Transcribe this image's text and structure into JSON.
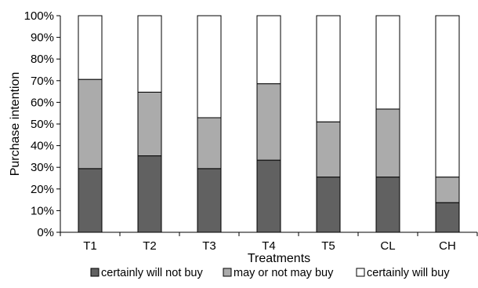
{
  "chart_data": {
    "type": "bar",
    "stacked": true,
    "percent": true,
    "title": "",
    "xlabel": "Treatments",
    "ylabel": "Purchase intention",
    "ylim": [
      0,
      100
    ],
    "yticks": [
      "0%",
      "10%",
      "20%",
      "30%",
      "40%",
      "50%",
      "60%",
      "70%",
      "80%",
      "90%",
      "100%"
    ],
    "categories": [
      "T1",
      "T2",
      "T3",
      "T4",
      "T5",
      "CL",
      "CH"
    ],
    "series": [
      {
        "name": "certainly will not buy",
        "color": "#616161",
        "values": [
          29.4,
          35.3,
          29.4,
          33.3,
          25.5,
          25.5,
          13.7
        ]
      },
      {
        "name": "may or not may buy",
        "color": "#ababab",
        "values": [
          41.2,
          29.4,
          23.5,
          35.3,
          25.5,
          31.4,
          11.8
        ]
      },
      {
        "name": "certainly will buy",
        "color": "#ffffff",
        "values": [
          29.4,
          35.3,
          47.1,
          31.4,
          49.0,
          43.1,
          74.5
        ]
      }
    ],
    "grid": false,
    "legend": "bottom"
  }
}
